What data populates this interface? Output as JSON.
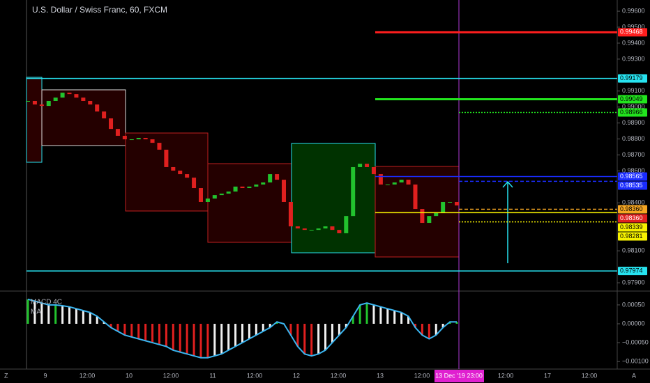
{
  "chart_data": {
    "type": "candlestick",
    "title": "U.S. Dollar / Swiss Franc, 60, FXCM",
    "up_color": "#22c32e",
    "down_color": "#e0201f",
    "values": [
      0.99038,
      0.99016,
      0.99007,
      0.99038,
      0.99059,
      0.9909,
      0.99081,
      0.99059,
      0.99038,
      0.99016,
      0.98972,
      0.98929,
      0.98863,
      0.9882,
      0.98798,
      0.98798,
      0.98807,
      0.98798,
      0.98776,
      0.98733,
      0.98624,
      0.98602,
      0.9858,
      0.98558,
      0.98493,
      0.98406,
      0.98427,
      0.98449,
      0.98458,
      0.98471,
      0.98502,
      0.98493,
      0.98502,
      0.98515,
      0.98528,
      0.9858,
      0.98545,
      0.98406,
      0.98253,
      0.9824,
      0.98231,
      0.98231,
      0.9824,
      0.98253,
      0.98231,
      0.9821,
      0.98318,
      0.98624,
      0.98645,
      0.98624,
      0.9858,
      0.98515,
      0.98515,
      0.98528,
      0.98545,
      0.98515,
      0.98362,
      0.98275,
      0.98318,
      0.9834,
      0.98406,
      0.98406,
      0.98384
    ],
    "ylim": [
      0.97848,
      0.9967
    ],
    "yticks": [
      {
        "value": 0.996,
        "label": "0.99600"
      },
      {
        "value": 0.995,
        "label": "0.99500"
      },
      {
        "value": 0.994,
        "label": "0.99400"
      },
      {
        "value": 0.993,
        "label": "0.99300"
      },
      {
        "value": 0.991,
        "label": "0.99100"
      },
      {
        "value": 0.99,
        "label": "0.99000"
      },
      {
        "value": 0.989,
        "label": "0.98900"
      },
      {
        "value": 0.988,
        "label": "0.98800"
      },
      {
        "value": 0.987,
        "label": "0.98700"
      },
      {
        "value": 0.986,
        "label": "0.98600"
      },
      {
        "value": 0.984,
        "label": "0.98400"
      },
      {
        "value": 0.981,
        "label": "0.98100"
      },
      {
        "value": 0.979,
        "label": "0.97900"
      }
    ],
    "price_lines": [
      {
        "value": 0.99468,
        "label": "0.99468",
        "color": "#ff1e1e",
        "style": "thick"
      },
      {
        "value": 0.99179,
        "label": "0.99179",
        "color": "#27e3f0",
        "style": "solid"
      },
      {
        "value": 0.99049,
        "label": "0.99049",
        "color": "#22e51e",
        "style": "thick"
      },
      {
        "value": 0.98966,
        "label": "0.98966",
        "color": "#22e51e",
        "style": "dotted"
      },
      {
        "value": 0.98565,
        "label": "0.98565",
        "color": "#1a2cff",
        "style": "solid"
      },
      {
        "value": 0.98535,
        "label": "0.98535",
        "color": "#1a2cff",
        "style": "dashed"
      },
      {
        "value": 0.9836,
        "label": "0.98360",
        "color": "#f5a623",
        "style": "dashed"
      },
      {
        "value": 0.9836,
        "label": "0.98360",
        "color": "#e0201f",
        "style": "none"
      },
      {
        "value": 0.98339,
        "label": "0.98339",
        "color": "#f5f000",
        "style": "solid"
      },
      {
        "value": 0.98281,
        "label": "0.98281",
        "color": "#f5f000",
        "style": "dotted"
      },
      {
        "value": 0.97974,
        "label": "0.97974",
        "color": "#27e3f0",
        "style": "solid"
      }
    ],
    "time_labels": [
      "9",
      "12:00",
      "10",
      "12:00",
      "11",
      "12:00",
      "12",
      "12:00",
      "13",
      "12:00",
      "12:00",
      "17",
      "12:00"
    ],
    "crosshair_time": "13 Dec '19  23:00",
    "macd": {
      "labels": [
        "MACD 4C",
        "MA"
      ],
      "line_color": "#3ab5f0",
      "values": [
        0.00065,
        0.0006,
        0.00055,
        0.0005,
        0.0005,
        0.00048,
        0.00045,
        0.0004,
        0.00035,
        0.0003,
        0.0002,
        5e-05,
        -0.0001,
        -0.0002,
        -0.0003,
        -0.00035,
        -0.0004,
        -0.00045,
        -0.0005,
        -0.00055,
        -0.0006,
        -0.0007,
        -0.00075,
        -0.0008,
        -0.00085,
        -0.0009,
        -0.0009,
        -0.00085,
        -0.0008,
        -0.0007,
        -0.0006,
        -0.0005,
        -0.0004,
        -0.0003,
        -0.0002,
        -0.0001,
        5e-05,
        0,
        -0.0003,
        -0.0006,
        -0.0008,
        -0.00085,
        -0.0008,
        -0.0007,
        -0.0005,
        -0.0003,
        -0.0001,
        0.0002,
        0.0005,
        0.00055,
        0.0005,
        0.00045,
        0.0004,
        0.00035,
        0.0003,
        0.0002,
        -0.0001,
        -0.0003,
        -0.0004,
        -0.0003,
        -0.0001,
        5e-05,
        5e-05
      ],
      "ylim": [
        -0.0012,
        0.00083
      ],
      "yticks": [
        {
          "value": 0.0005,
          "label": "0.00050"
        },
        {
          "value": 0,
          "label": "0.00000"
        },
        {
          "value": -0.0005,
          "label": "−0.00050"
        },
        {
          "value": -0.001,
          "label": "−0.00100"
        }
      ]
    },
    "corner_buttons": [
      "Z",
      "A"
    ]
  }
}
